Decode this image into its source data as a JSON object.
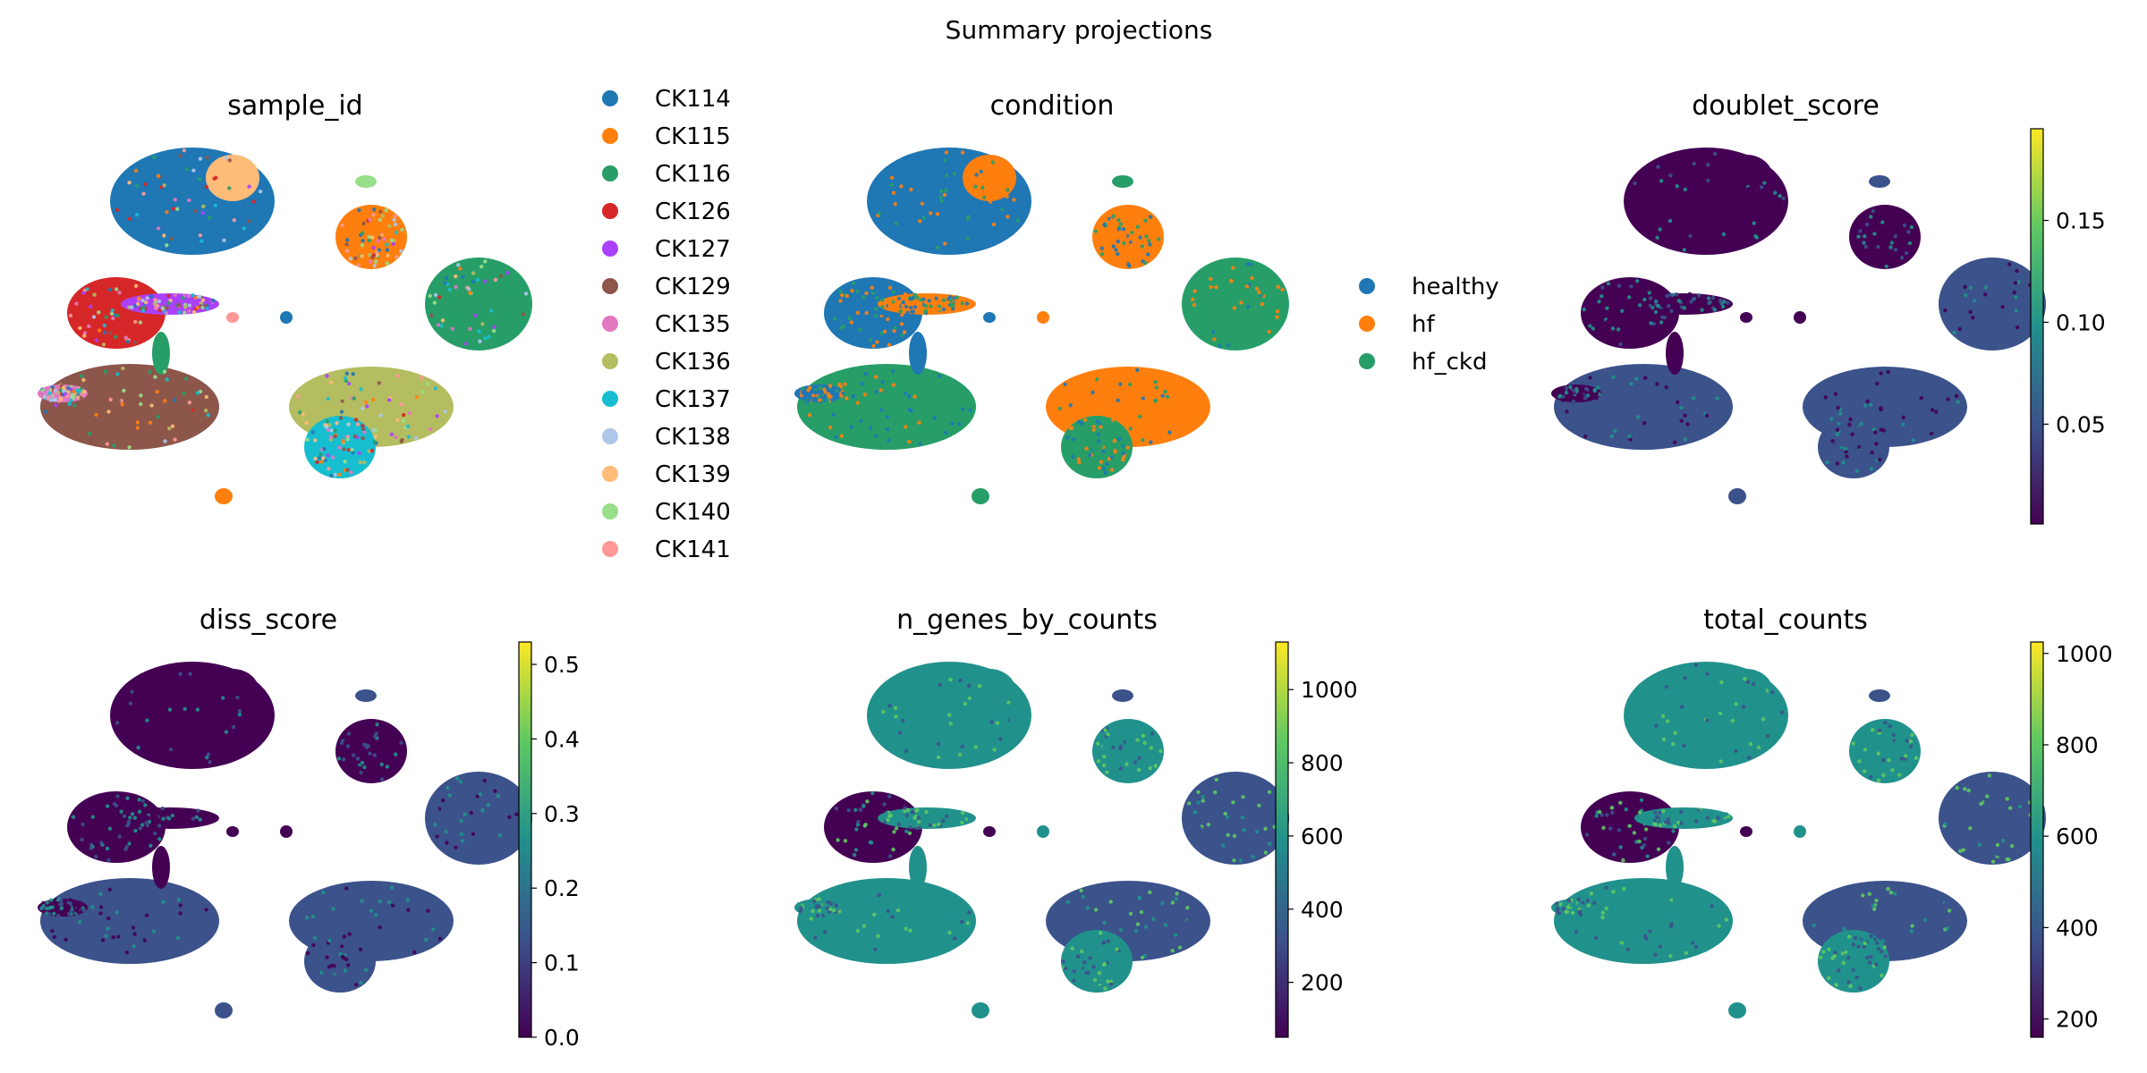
{
  "figure": {
    "title": "Summary projections"
  },
  "colorscale": [
    "#440154",
    "#3b528b",
    "#21918c",
    "#5ec962",
    "#fde725"
  ],
  "chart_data": [
    {
      "type": "scatter",
      "title": "sample_id",
      "encoding": "categorical",
      "legend": {
        "placement": "right",
        "entries": [
          {
            "label": "CK114",
            "color": "#1f77b4"
          },
          {
            "label": "CK115",
            "color": "#ff7f0e"
          },
          {
            "label": "CK116",
            "color": "#279e68"
          },
          {
            "label": "CK126",
            "color": "#d62728"
          },
          {
            "label": "CK127",
            "color": "#aa40fc"
          },
          {
            "label": "CK129",
            "color": "#8c564b"
          },
          {
            "label": "CK135",
            "color": "#e377c2"
          },
          {
            "label": "CK136",
            "color": "#b5bd61"
          },
          {
            "label": "CK137",
            "color": "#17becf"
          },
          {
            "label": "CK138",
            "color": "#aec7e8"
          },
          {
            "label": "CK139",
            "color": "#ffbb78"
          },
          {
            "label": "CK140",
            "color": "#98df8a"
          },
          {
            "label": "CK141",
            "color": "#ff9896"
          }
        ]
      }
    },
    {
      "type": "scatter",
      "title": "condition",
      "encoding": "categorical",
      "legend": {
        "placement": "right",
        "entries": [
          {
            "label": "healthy",
            "color": "#1f77b4"
          },
          {
            "label": "hf",
            "color": "#ff7f0e"
          },
          {
            "label": "hf_ckd",
            "color": "#279e68"
          }
        ]
      }
    },
    {
      "type": "scatter",
      "title": "doublet_score",
      "encoding": "continuous",
      "colorbar": {
        "range": [
          0.001,
          0.195
        ],
        "ticks": [
          0.05,
          0.1,
          0.15
        ],
        "tick_labels": [
          "0.05",
          "0.10",
          "0.15"
        ]
      }
    },
    {
      "type": "scatter",
      "title": "diss_score",
      "encoding": "continuous",
      "colorbar": {
        "range": [
          0,
          0.53
        ],
        "ticks": [
          0,
          0.1,
          0.2,
          0.3,
          0.4,
          0.5
        ],
        "tick_labels": [
          "0.0",
          "0.1",
          "0.2",
          "0.3",
          "0.4",
          "0.5"
        ]
      }
    },
    {
      "type": "scatter",
      "title": "n_genes_by_counts",
      "encoding": "continuous",
      "colorbar": {
        "range": [
          50,
          1130
        ],
        "ticks": [
          200,
          400,
          600,
          800,
          1000
        ],
        "tick_labels": [
          "200",
          "400",
          "600",
          "800",
          "1000"
        ]
      }
    },
    {
      "type": "scatter",
      "title": "total_counts",
      "encoding": "continuous",
      "colorbar": {
        "range": [
          160,
          1025
        ],
        "ticks": [
          200,
          400,
          600,
          800,
          1000
        ],
        "tick_labels": [
          "200",
          "400",
          "600",
          "800",
          "1000"
        ]
      }
    }
  ]
}
